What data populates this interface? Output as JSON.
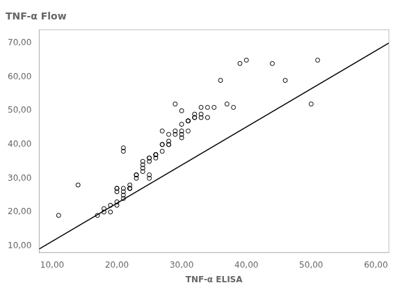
{
  "chart_data": {
    "type": "scatter",
    "title": "TNF-α Flow",
    "xlabel": "TNF-α ELISA",
    "xlim": [
      8,
      62
    ],
    "ylim": [
      8,
      74
    ],
    "xticks": [
      {
        "value": 10,
        "label": "10,00"
      },
      {
        "value": 20,
        "label": "20,00"
      },
      {
        "value": 30,
        "label": "30,00"
      },
      {
        "value": 40,
        "label": "40,00"
      },
      {
        "value": 50,
        "label": "50,00"
      },
      {
        "value": 60,
        "label": "60,00"
      }
    ],
    "yticks": [
      {
        "value": 10,
        "label": "10,00"
      },
      {
        "value": 20,
        "label": "20,00"
      },
      {
        "value": 30,
        "label": "30,00"
      },
      {
        "value": 40,
        "label": "40,00"
      },
      {
        "value": 50,
        "label": "50,00"
      },
      {
        "value": 60,
        "label": "60,00"
      },
      {
        "value": 70,
        "label": "70,00"
      }
    ],
    "grid": false,
    "series": [
      {
        "type": "scatter",
        "color": "#000000",
        "marker": "circle",
        "x": [
          11,
          14,
          17,
          18,
          18,
          19,
          19,
          20,
          20,
          20,
          20,
          20,
          21,
          21,
          21,
          21,
          21,
          21,
          22,
          22,
          22,
          22,
          23,
          23,
          23,
          24,
          24,
          24,
          24,
          25,
          25,
          25,
          25,
          25,
          26,
          26,
          26,
          26,
          27,
          27,
          27,
          27,
          28,
          28,
          28,
          28,
          29,
          29,
          29,
          30,
          30,
          30,
          30,
          30,
          31,
          31,
          31,
          31,
          32,
          32,
          32,
          33,
          33,
          33,
          34,
          34,
          35,
          36,
          37,
          38,
          39,
          40,
          44,
          46,
          50,
          51
        ],
        "values": [
          19,
          28,
          19,
          21,
          20,
          22,
          20,
          22,
          23,
          26,
          27,
          27,
          24,
          25,
          26,
          27,
          38,
          39,
          27,
          27,
          27,
          28,
          30,
          31,
          31,
          32,
          33,
          34,
          35,
          30,
          31,
          35,
          36,
          36,
          36,
          37,
          37,
          37,
          38,
          40,
          40,
          44,
          40,
          40,
          41,
          43,
          43,
          44,
          52,
          42,
          43,
          44,
          46,
          50,
          44,
          47,
          47,
          47,
          48,
          48,
          49,
          48,
          49,
          51,
          48,
          51,
          51,
          59,
          52,
          51,
          64,
          65,
          64,
          59,
          52,
          65
        ]
      },
      {
        "type": "line",
        "color": "#000000",
        "line_style": "solid",
        "x": [
          8,
          62
        ],
        "values": [
          9.04,
          70.06
        ]
      }
    ]
  }
}
